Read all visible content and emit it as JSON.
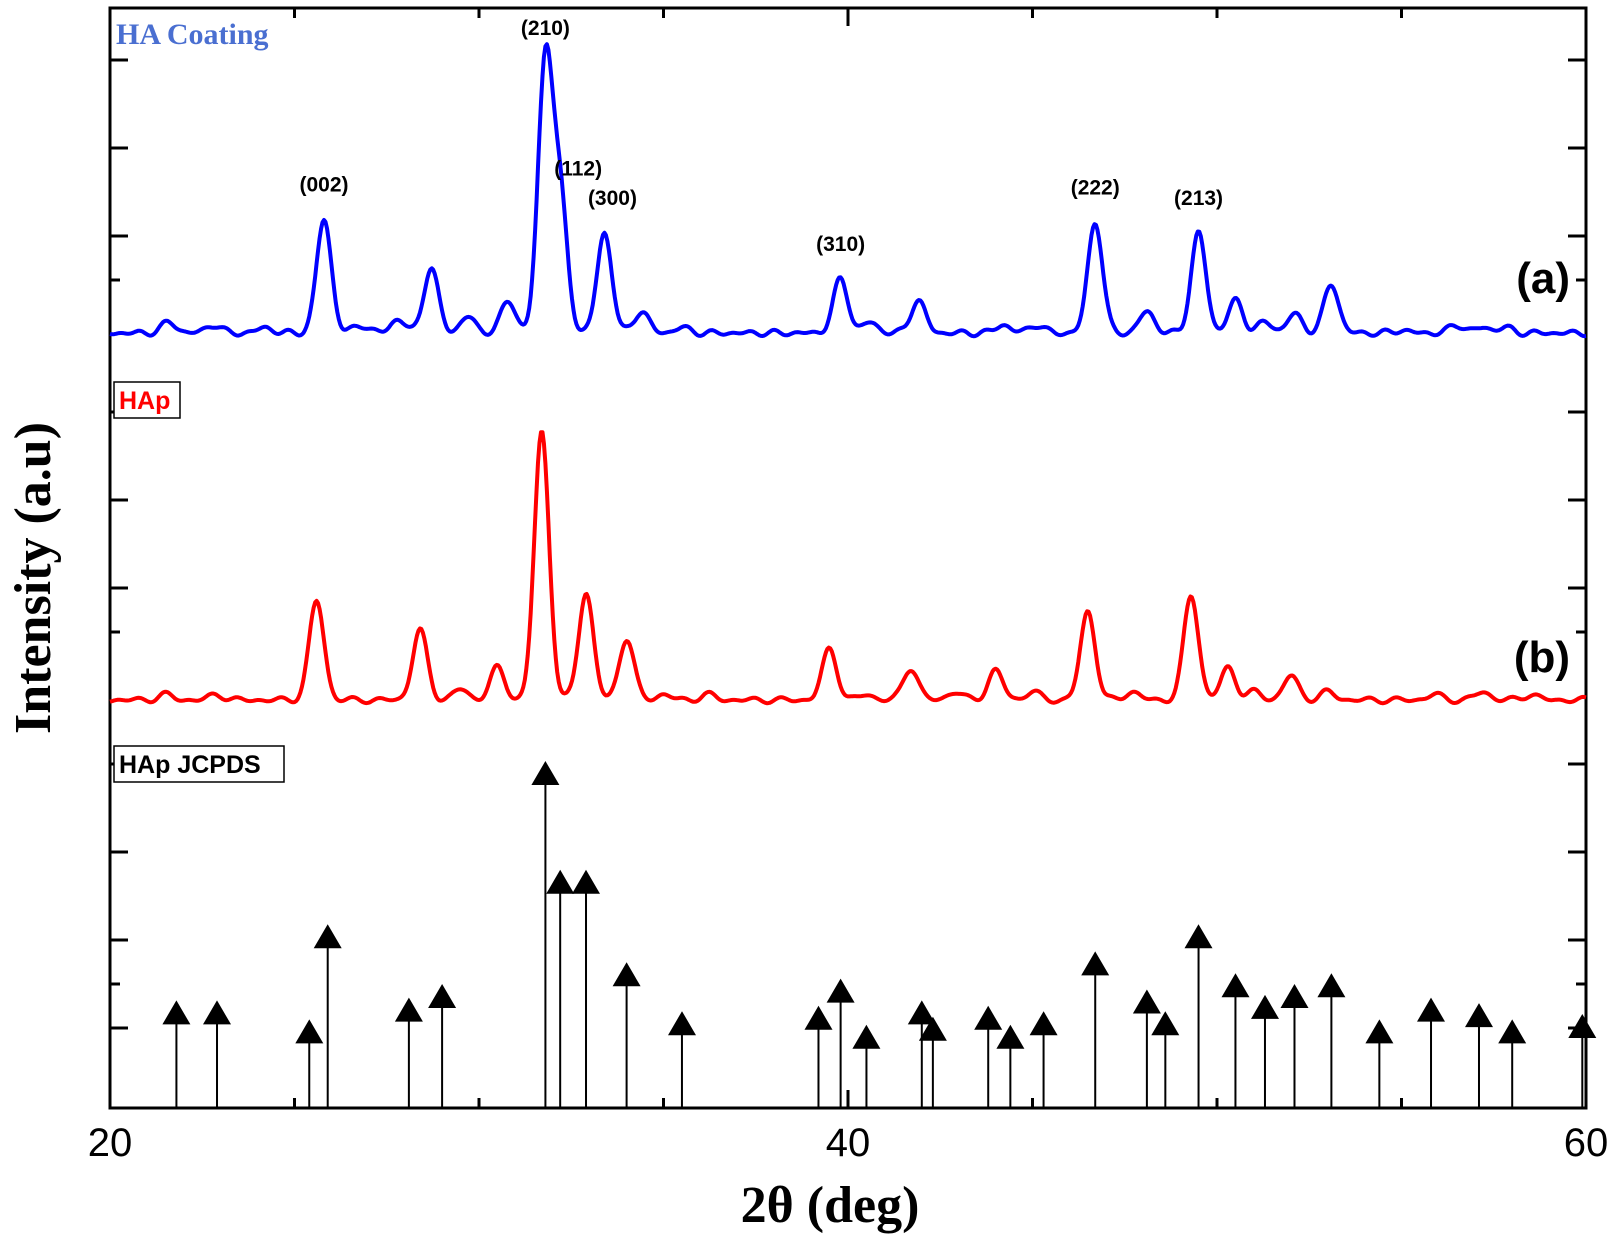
{
  "chart_data": {
    "type": "line",
    "xlabel": "2θ (deg)",
    "ylabel": "Intensity (a.u)",
    "xlim": [
      20,
      60
    ],
    "x_ticks": [
      "20",
      "40",
      "60"
    ],
    "grid": false,
    "panels": [
      {
        "name": "HA Coating",
        "label": "(a)",
        "color": "#0000ff",
        "label_color": "#4a6fd1",
        "peaks": [
          {
            "x": 21.6,
            "h": 0.04
          },
          {
            "x": 22.8,
            "h": 0.03
          },
          {
            "x": 24.2,
            "h": 0.02
          },
          {
            "x": 25.8,
            "h": 0.42
          },
          {
            "x": 26.8,
            "h": 0.03
          },
          {
            "x": 27.8,
            "h": 0.05
          },
          {
            "x": 28.7,
            "h": 0.24
          },
          {
            "x": 29.7,
            "h": 0.06
          },
          {
            "x": 30.8,
            "h": 0.12
          },
          {
            "x": 31.8,
            "h": 1.0
          },
          {
            "x": 32.2,
            "h": 0.48
          },
          {
            "x": 33.4,
            "h": 0.37
          },
          {
            "x": 34.4,
            "h": 0.08
          },
          {
            "x": 35.5,
            "h": 0.02
          },
          {
            "x": 39.8,
            "h": 0.2
          },
          {
            "x": 40.6,
            "h": 0.04
          },
          {
            "x": 41.9,
            "h": 0.12
          },
          {
            "x": 44.2,
            "h": 0.03
          },
          {
            "x": 45.1,
            "h": 0.03
          },
          {
            "x": 46.7,
            "h": 0.41
          },
          {
            "x": 48.1,
            "h": 0.08
          },
          {
            "x": 49.5,
            "h": 0.37
          },
          {
            "x": 50.5,
            "h": 0.12
          },
          {
            "x": 51.3,
            "h": 0.04
          },
          {
            "x": 52.1,
            "h": 0.07
          },
          {
            "x": 53.1,
            "h": 0.18
          },
          {
            "x": 55.0,
            "h": 0.01
          },
          {
            "x": 56.5,
            "h": 0.03
          },
          {
            "x": 57.2,
            "h": 0.02
          },
          {
            "x": 57.8,
            "h": 0.02
          }
        ],
        "annotations": [
          {
            "x": 25.8,
            "text": "(002)"
          },
          {
            "x": 31.8,
            "text": "(210)"
          },
          {
            "x": 32.2,
            "text": "(112)"
          },
          {
            "x": 33.4,
            "text": "(300)"
          },
          {
            "x": 39.8,
            "text": "(310)"
          },
          {
            "x": 46.7,
            "text": "(222)"
          },
          {
            "x": 49.5,
            "text": "(213)"
          }
        ]
      },
      {
        "name": "HAp",
        "label": "(b)",
        "color": "#ff0000",
        "label_color": "#ff0000",
        "peaks": [
          {
            "x": 21.5,
            "h": 0.02
          },
          {
            "x": 22.9,
            "h": 0.02
          },
          {
            "x": 25.6,
            "h": 0.37
          },
          {
            "x": 28.4,
            "h": 0.26
          },
          {
            "x": 29.5,
            "h": 0.04
          },
          {
            "x": 30.5,
            "h": 0.12
          },
          {
            "x": 31.7,
            "h": 1.0
          },
          {
            "x": 32.9,
            "h": 0.4
          },
          {
            "x": 34.0,
            "h": 0.23
          },
          {
            "x": 35.0,
            "h": 0.02
          },
          {
            "x": 36.2,
            "h": 0.02
          },
          {
            "x": 39.5,
            "h": 0.19
          },
          {
            "x": 40.5,
            "h": 0.02
          },
          {
            "x": 41.7,
            "h": 0.12
          },
          {
            "x": 42.9,
            "h": 0.03
          },
          {
            "x": 44.0,
            "h": 0.11
          },
          {
            "x": 45.0,
            "h": 0.03
          },
          {
            "x": 46.5,
            "h": 0.33
          },
          {
            "x": 47.7,
            "h": 0.03
          },
          {
            "x": 49.3,
            "h": 0.39
          },
          {
            "x": 50.3,
            "h": 0.12
          },
          {
            "x": 51.0,
            "h": 0.03
          },
          {
            "x": 52.0,
            "h": 0.09
          },
          {
            "x": 53.0,
            "h": 0.03
          },
          {
            "x": 55.9,
            "h": 0.02
          },
          {
            "x": 57.2,
            "h": 0.03
          },
          {
            "x": 58.5,
            "h": 0.02
          }
        ]
      },
      {
        "name": "HAp JCPDS",
        "color": "#000000",
        "label_color": "#000000",
        "lines": [
          {
            "x": 21.8,
            "h": 0.12
          },
          {
            "x": 22.9,
            "h": 0.12
          },
          {
            "x": 25.4,
            "h": 0.05
          },
          {
            "x": 25.9,
            "h": 0.4
          },
          {
            "x": 28.1,
            "h": 0.13
          },
          {
            "x": 29.0,
            "h": 0.18
          },
          {
            "x": 31.8,
            "h": 1.0
          },
          {
            "x": 32.2,
            "h": 0.6
          },
          {
            "x": 32.9,
            "h": 0.6
          },
          {
            "x": 34.0,
            "h": 0.26
          },
          {
            "x": 35.5,
            "h": 0.08
          },
          {
            "x": 39.2,
            "h": 0.1
          },
          {
            "x": 39.8,
            "h": 0.2
          },
          {
            "x": 40.5,
            "h": 0.03
          },
          {
            "x": 42.0,
            "h": 0.12
          },
          {
            "x": 42.3,
            "h": 0.06
          },
          {
            "x": 43.8,
            "h": 0.1
          },
          {
            "x": 44.4,
            "h": 0.03
          },
          {
            "x": 45.3,
            "h": 0.08
          },
          {
            "x": 46.7,
            "h": 0.3
          },
          {
            "x": 48.1,
            "h": 0.16
          },
          {
            "x": 48.6,
            "h": 0.08
          },
          {
            "x": 49.5,
            "h": 0.4
          },
          {
            "x": 50.5,
            "h": 0.22
          },
          {
            "x": 51.3,
            "h": 0.14
          },
          {
            "x": 52.1,
            "h": 0.18
          },
          {
            "x": 53.1,
            "h": 0.22
          },
          {
            "x": 54.4,
            "h": 0.05
          },
          {
            "x": 55.8,
            "h": 0.13
          },
          {
            "x": 57.1,
            "h": 0.11
          },
          {
            "x": 58.0,
            "h": 0.05
          },
          {
            "x": 59.9,
            "h": 0.07
          }
        ]
      }
    ]
  }
}
